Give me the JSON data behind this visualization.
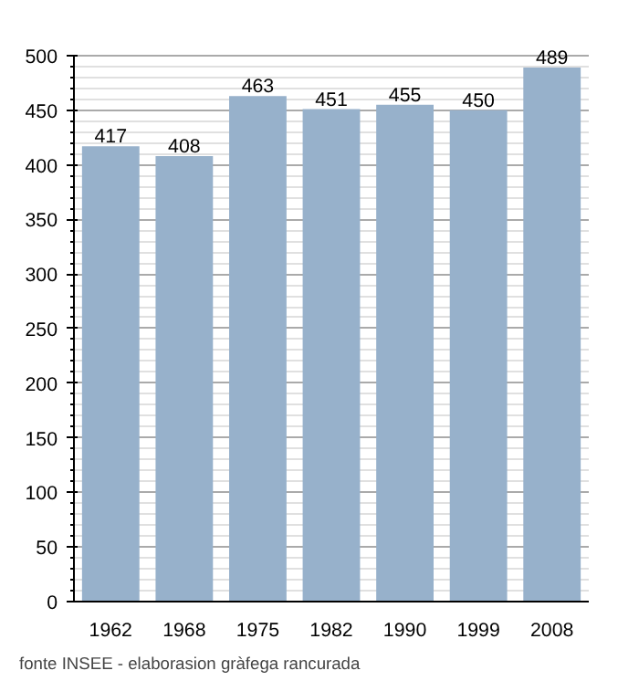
{
  "chart_data": {
    "type": "bar",
    "categories": [
      "1962",
      "1968",
      "1975",
      "1982",
      "1990",
      "1999",
      "2008"
    ],
    "values": [
      417,
      408,
      463,
      451,
      455,
      450,
      489
    ],
    "color": "#97b1cb",
    "ylim": [
      0,
      500
    ],
    "yticks": [
      0,
      50,
      100,
      150,
      200,
      250,
      300,
      350,
      400,
      450,
      500
    ],
    "grid": "y",
    "data_labels": true,
    "annotations": [
      "fonte INSEE - elaborasion gràfega rancurada"
    ]
  }
}
